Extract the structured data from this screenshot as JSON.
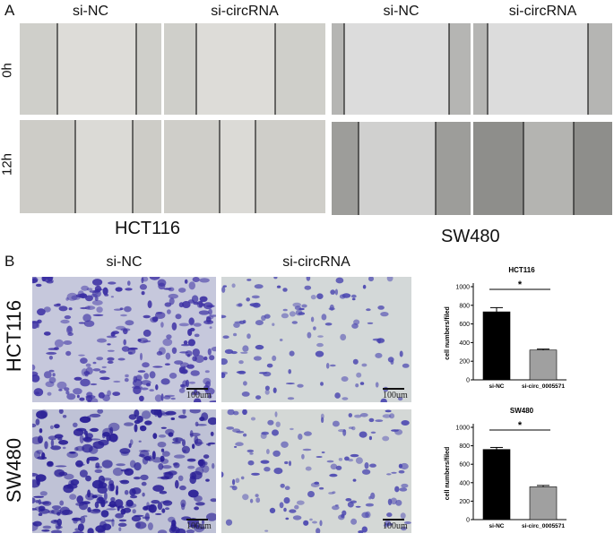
{
  "panel_a": {
    "letter": "A",
    "col_labels_hct": [
      "si-NC",
      "si-circRNA"
    ],
    "col_labels_sw": [
      "si-NC",
      "si-circRNA"
    ],
    "row_labels_hct": [
      "0h",
      "12h"
    ],
    "row_labels_sw": [
      "0h",
      "12h"
    ],
    "cell_hct": "HCT116",
    "cell_sw": "SW480"
  },
  "panel_b": {
    "letter": "B",
    "col_labels": [
      "si-NC",
      "si-circRNA"
    ],
    "row_labels": [
      "HCT116",
      "SW480"
    ],
    "scale_bar": "100um"
  },
  "chart_data": [
    {
      "type": "bar",
      "title": "HCT116",
      "ylabel": "cell numbers/filed",
      "categories": [
        "si-NC",
        "si-circ_0005571"
      ],
      "values": [
        730,
        320
      ],
      "errors": [
        45,
        10
      ],
      "colors": [
        "#000000",
        "#a0a0a0"
      ],
      "ylim": [
        0,
        1000
      ],
      "yticks": [
        0,
        200,
        400,
        600,
        800,
        1000
      ],
      "significance": "*"
    },
    {
      "type": "bar",
      "title": "SW480",
      "ylabel": "cell numbers/filed",
      "categories": [
        "si-NC",
        "si-circ_0005571"
      ],
      "values": [
        760,
        355
      ],
      "errors": [
        22,
        15
      ],
      "colors": [
        "#000000",
        "#a0a0a0"
      ],
      "ylim": [
        0,
        1000
      ],
      "yticks": [
        0,
        200,
        400,
        600,
        800,
        1000
      ],
      "significance": "*"
    }
  ]
}
